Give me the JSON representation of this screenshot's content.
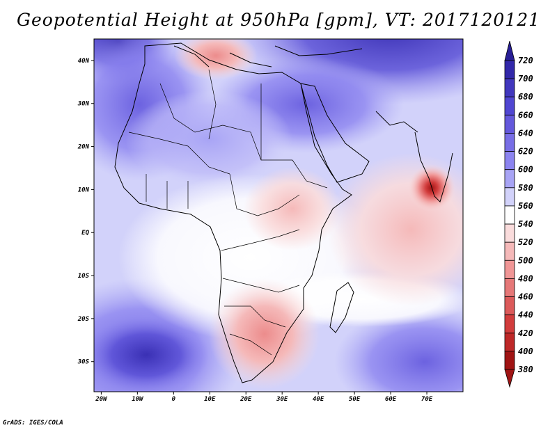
{
  "title": "Geopotential Height at 950hPa [gpm], VT: 2017120121",
  "credit": "GrADS: IGES/COLA",
  "map": {
    "lon_range": [
      -22,
      80
    ],
    "lat_range": [
      -37,
      45
    ],
    "lon_ticks": [
      {
        "value": -20,
        "label": "20W"
      },
      {
        "value": -10,
        "label": "10W"
      },
      {
        "value": 0,
        "label": "0"
      },
      {
        "value": 10,
        "label": "10E"
      },
      {
        "value": 20,
        "label": "20E"
      },
      {
        "value": 30,
        "label": "30E"
      },
      {
        "value": 40,
        "label": "40E"
      },
      {
        "value": 50,
        "label": "50E"
      },
      {
        "value": 60,
        "label": "60E"
      },
      {
        "value": 70,
        "label": "70E"
      }
    ],
    "lat_ticks": [
      {
        "value": 40,
        "label": "40N"
      },
      {
        "value": 30,
        "label": "30N"
      },
      {
        "value": 20,
        "label": "20N"
      },
      {
        "value": 10,
        "label": "10N"
      },
      {
        "value": 0,
        "label": "EQ"
      },
      {
        "value": -10,
        "label": "10S"
      },
      {
        "value": -20,
        "label": "20S"
      },
      {
        "value": -30,
        "label": "30S"
      }
    ],
    "features": [
      {
        "name": "strong-low-arabian-sea",
        "lon": 70,
        "lat": 10,
        "approx_value": 400
      },
      {
        "name": "low-southern-africa",
        "lon": 23,
        "lat": -25,
        "approx_value": 500
      },
      {
        "name": "low-mediterranean",
        "lon": 14,
        "lat": 39,
        "approx_value": 510
      },
      {
        "name": "high-north",
        "lon": 55,
        "lat": 43,
        "approx_value": 700
      },
      {
        "name": "high-south-atlantic",
        "lon": -15,
        "lat": -30,
        "approx_value": 640
      },
      {
        "name": "high-south-indian",
        "lon": 65,
        "lat": -30,
        "approx_value": 630
      }
    ]
  },
  "colorbar": {
    "levels": [
      {
        "label": "720",
        "color": "#281e96"
      },
      {
        "label": "700",
        "color": "#3228aa"
      },
      {
        "label": "680",
        "color": "#4137be"
      },
      {
        "label": "660",
        "color": "#5046d2"
      },
      {
        "label": "640",
        "color": "#6458dc"
      },
      {
        "label": "620",
        "color": "#786ee6"
      },
      {
        "label": "600",
        "color": "#8c84f0"
      },
      {
        "label": "580",
        "color": "#a8a4f5"
      },
      {
        "label": "560",
        "color": "#d2d2fa"
      },
      {
        "label": "540",
        "color": "#ffffff"
      },
      {
        "label": "520",
        "color": "#fadcdc"
      },
      {
        "label": "500",
        "color": "#f5b9b9"
      },
      {
        "label": "480",
        "color": "#f09696"
      },
      {
        "label": "460",
        "color": "#e67878"
      },
      {
        "label": "440",
        "color": "#dc5a5a"
      },
      {
        "label": "420",
        "color": "#d23c3c"
      },
      {
        "label": "400",
        "color": "#be2828"
      },
      {
        "label": "380",
        "color": "#a01414"
      }
    ],
    "top_arrow_color": "#281e96",
    "bottom_arrow_color": "#a01414"
  }
}
